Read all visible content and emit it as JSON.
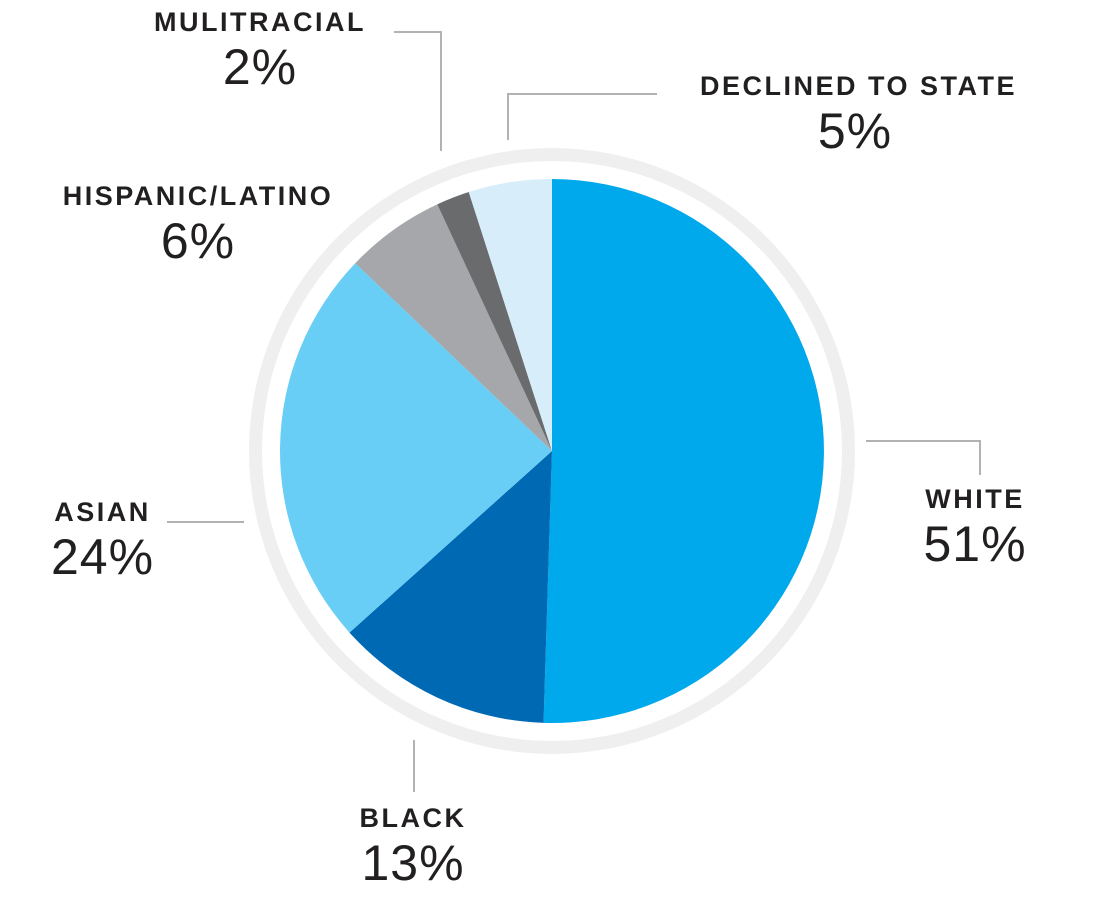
{
  "chart_data": {
    "type": "pie",
    "title": "",
    "start_angle_deg": 0,
    "direction": "clockwise",
    "units": "percent",
    "legend_position": "around-chart-with-leader-lines",
    "segments": [
      {
        "label": "WHITE",
        "value": 51,
        "display": "51%",
        "color": "#00a8ec"
      },
      {
        "label": "BLACK",
        "value": 13,
        "display": "13%",
        "color": "#0069b4"
      },
      {
        "label": "ASIAN",
        "value": 24,
        "display": "24%",
        "color": "#68cef5"
      },
      {
        "label": "HISPANIC/LATINO",
        "value": 6,
        "display": "6%",
        "color": "#a5a7aa"
      },
      {
        "label": "MULITRACIAL",
        "value": 2,
        "display": "2%",
        "color": "#696b6d"
      },
      {
        "label": "DECLINED TO STATE",
        "value": 5,
        "display": "5%",
        "color": "#d7edfa"
      }
    ],
    "ring": {
      "halo_color": "#efeff0",
      "gap_color": "#ffffff",
      "pie_radius": 272,
      "gap_outer_radius": 290,
      "halo_outer_radius": 303
    }
  },
  "colors": {
    "background": "#ffffff",
    "text": "#221f20",
    "leader_line": "#b2b2b2"
  }
}
